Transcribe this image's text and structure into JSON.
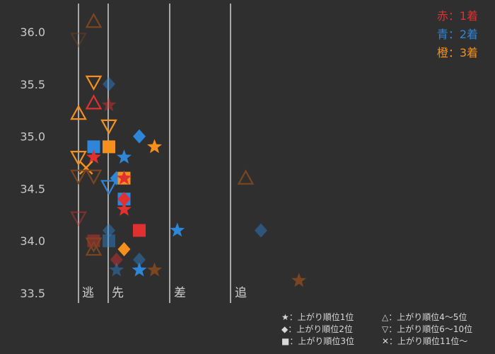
{
  "colors": {
    "background": "#2f2f2f",
    "finish_1": "#e03030",
    "finish_2": "#2e86d8",
    "finish_3": "#f5901e",
    "other": "#7a4520",
    "divider": "#a8a8a8",
    "text": "#c8c8c8"
  },
  "finish_legend": [
    {
      "text": "赤：1着",
      "color": "#e03030"
    },
    {
      "text": "青：2着",
      "color": "#2e86d8"
    },
    {
      "text": "橙：3着",
      "color": "#f5901e"
    }
  ],
  "symbol_legend": [
    {
      "text": "★：上がり順位1位"
    },
    {
      "text": "△：上がり順位4～5位"
    },
    {
      "text": "◆：上がり順位2位"
    },
    {
      "text": "▽：上がり順位6～10位"
    },
    {
      "text": "■：上がり順位3位"
    },
    {
      "text": "✕：上がり順位11位～"
    }
  ],
  "chart_data": {
    "type": "scatter",
    "title": "",
    "xlabel": "",
    "ylabel": "",
    "ylim": [
      33.5,
      36.3
    ],
    "yticks": [
      33.5,
      34.0,
      34.5,
      35.0,
      35.5,
      36.0
    ],
    "ytick_labels": [
      "33.5",
      "34.0",
      "34.5",
      "35.0",
      "35.5",
      "36.0"
    ],
    "style_labels": [
      "逃",
      "先",
      "差",
      "追"
    ],
    "grid": false,
    "legend_position": "top-right",
    "points": [
      {
        "x": 0.0,
        "y": 35.93,
        "rank": "6-10",
        "finish": "other",
        "faded": true
      },
      {
        "x": 1.0,
        "y": 36.1,
        "rank": "4-5",
        "finish": "other",
        "faded": false
      },
      {
        "x": 2.0,
        "y": 35.5,
        "rank": "2",
        "finish": "2",
        "faded": true
      },
      {
        "x": 1.0,
        "y": 35.52,
        "rank": "6-10",
        "finish": "3",
        "faded": false
      },
      {
        "x": 0.0,
        "y": 35.22,
        "rank": "4-5",
        "finish": "3",
        "faded": false
      },
      {
        "x": 1.0,
        "y": 35.32,
        "rank": "4-5",
        "finish": "1",
        "faded": false
      },
      {
        "x": 2.0,
        "y": 35.3,
        "rank": "1",
        "finish": "1",
        "faded": true
      },
      {
        "x": 2.0,
        "y": 35.1,
        "rank": "6-10",
        "finish": "3",
        "faded": false
      },
      {
        "x": 4.0,
        "y": 35.0,
        "rank": "2",
        "finish": "2",
        "faded": false
      },
      {
        "x": 1.0,
        "y": 34.9,
        "rank": "3",
        "finish": "2",
        "faded": false
      },
      {
        "x": 2.0,
        "y": 34.9,
        "rank": "3",
        "finish": "3",
        "faded": false
      },
      {
        "x": 5.0,
        "y": 34.9,
        "rank": "1",
        "finish": "3",
        "faded": false
      },
      {
        "x": 0.0,
        "y": 34.8,
        "rank": "6-10",
        "finish": "3",
        "faded": false
      },
      {
        "x": 1.0,
        "y": 34.8,
        "rank": "1",
        "finish": "1",
        "faded": false
      },
      {
        "x": 3.0,
        "y": 34.8,
        "rank": "1",
        "finish": "2",
        "faded": false
      },
      {
        "x": 0.5,
        "y": 34.7,
        "rank": "11+",
        "finish": "3",
        "faded": false
      },
      {
        "x": 0.0,
        "y": 34.62,
        "rank": "6-10",
        "finish": "other",
        "faded": false
      },
      {
        "x": 1.0,
        "y": 34.62,
        "rank": "6-10",
        "finish": "other",
        "faded": false
      },
      {
        "x": 2.5,
        "y": 34.6,
        "rank": "2",
        "finish": "2",
        "faded": false
      },
      {
        "x": 3.0,
        "y": 34.6,
        "rank": "3",
        "finish": "3",
        "faded": false
      },
      {
        "x": 3.0,
        "y": 34.6,
        "rank": "1",
        "finish": "1",
        "faded": false
      },
      {
        "x": 2.0,
        "y": 34.52,
        "rank": "6-10",
        "finish": "2",
        "faded": false
      },
      {
        "x": 11.0,
        "y": 34.6,
        "rank": "4-5",
        "finish": "other",
        "faded": false
      },
      {
        "x": 3.0,
        "y": 34.4,
        "rank": "3",
        "finish": "2",
        "faded": false
      },
      {
        "x": 3.0,
        "y": 34.4,
        "rank": "2",
        "finish": "1",
        "faded": false
      },
      {
        "x": 3.0,
        "y": 34.3,
        "rank": "1",
        "finish": "1",
        "faded": false
      },
      {
        "x": 0.0,
        "y": 34.22,
        "rank": "6-10",
        "finish": "1",
        "faded": true
      },
      {
        "x": 4.0,
        "y": 34.1,
        "rank": "3",
        "finish": "1",
        "faded": false
      },
      {
        "x": 6.5,
        "y": 34.1,
        "rank": "1",
        "finish": "2",
        "faded": false
      },
      {
        "x": 12.0,
        "y": 34.1,
        "rank": "2",
        "finish": "2",
        "faded": true
      },
      {
        "x": 2.0,
        "y": 34.1,
        "rank": "2",
        "finish": "2",
        "faded": true
      },
      {
        "x": 1.0,
        "y": 34.0,
        "rank": "3",
        "finish": "1",
        "faded": true
      },
      {
        "x": 2.0,
        "y": 34.0,
        "rank": "3",
        "finish": "2",
        "faded": true
      },
      {
        "x": 1.0,
        "y": 33.97,
        "rank": "6-10",
        "finish": "other",
        "faded": false
      },
      {
        "x": 1.0,
        "y": 33.92,
        "rank": "4-5",
        "finish": "other",
        "faded": false
      },
      {
        "x": 3.0,
        "y": 33.92,
        "rank": "2",
        "finish": "3",
        "faded": false
      },
      {
        "x": 2.5,
        "y": 33.82,
        "rank": "2",
        "finish": "1",
        "faded": true
      },
      {
        "x": 4.0,
        "y": 33.82,
        "rank": "2",
        "finish": "2",
        "faded": true
      },
      {
        "x": 2.5,
        "y": 33.72,
        "rank": "1",
        "finish": "2",
        "faded": true
      },
      {
        "x": 4.0,
        "y": 33.72,
        "rank": "1",
        "finish": "2",
        "faded": false
      },
      {
        "x": 5.0,
        "y": 33.72,
        "rank": "1",
        "finish": "other",
        "faded": false
      },
      {
        "x": 14.5,
        "y": 33.62,
        "rank": "1",
        "finish": "other",
        "faded": false
      }
    ]
  }
}
